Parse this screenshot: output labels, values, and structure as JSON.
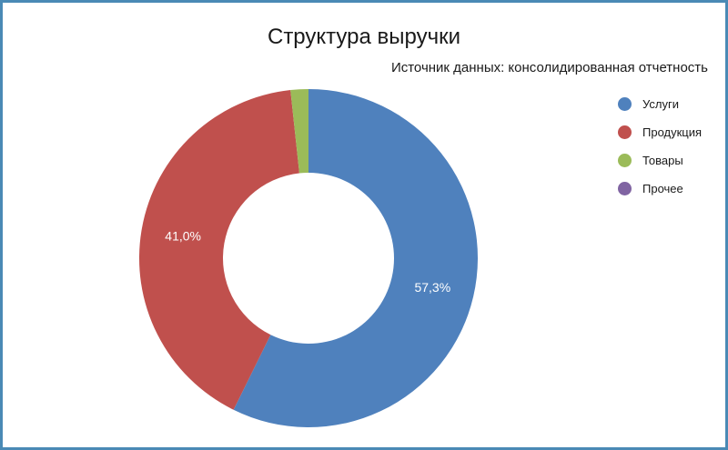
{
  "chart_data": {
    "type": "pie",
    "donut": true,
    "title": "Структура выручки",
    "subtitle": "Источник данных: консолидированная отчетность",
    "categories": [
      "Услуги",
      "Продукция",
      "Товары",
      "Прочее"
    ],
    "values": [
      57.3,
      41.0,
      1.7,
      0.0
    ],
    "data_labels": [
      "57,3%",
      "41,0%",
      "",
      ""
    ],
    "colors": [
      "#4f81bd",
      "#c0504d",
      "#9bbb59",
      "#8064a2"
    ],
    "legend": "right",
    "start_angle_deg": 0,
    "direction": "clockwise"
  }
}
